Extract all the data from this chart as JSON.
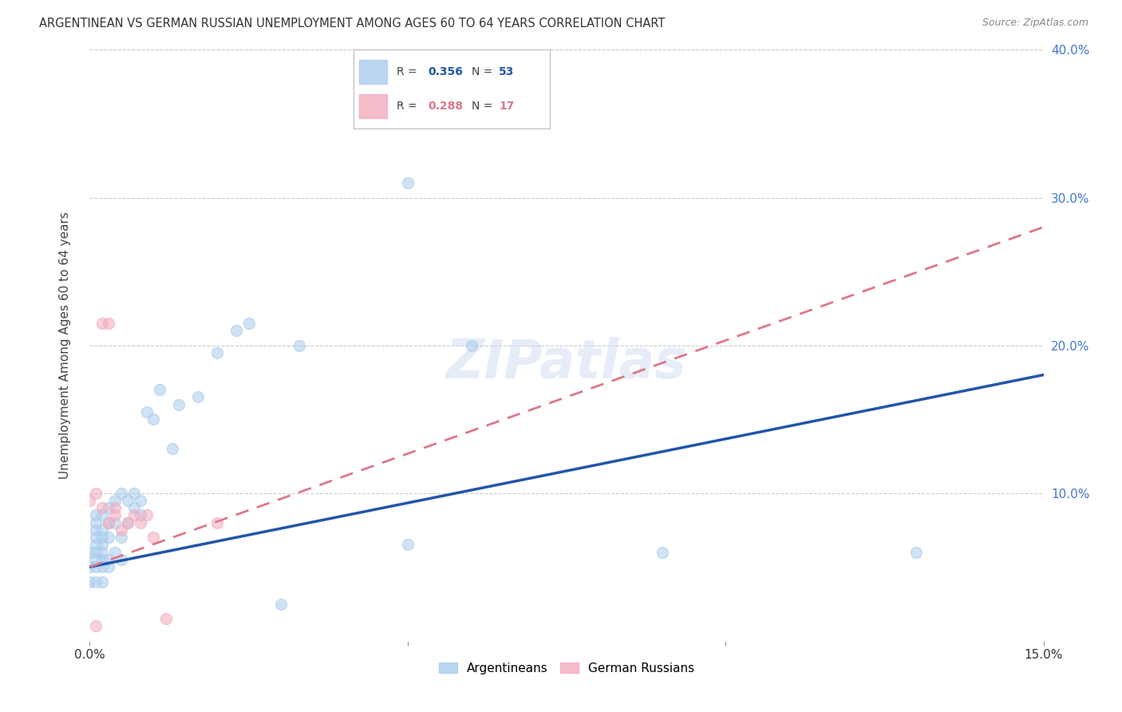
{
  "title": "ARGENTINEAN VS GERMAN RUSSIAN UNEMPLOYMENT AMONG AGES 60 TO 64 YEARS CORRELATION CHART",
  "source": "Source: ZipAtlas.com",
  "ylabel": "Unemployment Among Ages 60 to 64 years",
  "xlim": [
    0.0,
    0.15
  ],
  "ylim": [
    0.0,
    0.4
  ],
  "xticks": [
    0.0,
    0.05,
    0.1,
    0.15
  ],
  "xticklabels": [
    "0.0%",
    "",
    "",
    "15.0%"
  ],
  "yticks": [
    0.0,
    0.1,
    0.2,
    0.3,
    0.4
  ],
  "yticklabels": [
    "",
    "10.0%",
    "20.0%",
    "30.0%",
    "40.0%"
  ],
  "bg_color": "#ffffff",
  "grid_color": "#cccccc",
  "argentineans_color": "#aaccee",
  "german_russians_color": "#f4aabb",
  "blue_line_color": "#2255aa",
  "pink_line_color": "#dd7788",
  "legend_R1": "R = 0.356",
  "legend_N1": "N = 53",
  "legend_R2": "R = 0.288",
  "legend_N2": "N = 17",
  "tick_color": "#4477cc",
  "marker_size": 100,
  "marker_alpha": 0.55,
  "argentineans_x": [
    0.0,
    0.0,
    0.0,
    0.001,
    0.001,
    0.001,
    0.001,
    0.001,
    0.001,
    0.001,
    0.001,
    0.001,
    0.002,
    0.002,
    0.002,
    0.002,
    0.002,
    0.002,
    0.002,
    0.002,
    0.003,
    0.003,
    0.003,
    0.003,
    0.003,
    0.004,
    0.004,
    0.004,
    0.005,
    0.005,
    0.005,
    0.006,
    0.006,
    0.007,
    0.007,
    0.008,
    0.008,
    0.009,
    0.01,
    0.011,
    0.013,
    0.014,
    0.017,
    0.02,
    0.023,
    0.025,
    0.03,
    0.033,
    0.05,
    0.06,
    0.09,
    0.13,
    0.05
  ],
  "argentineans_y": [
    0.04,
    0.05,
    0.06,
    0.04,
    0.05,
    0.055,
    0.06,
    0.065,
    0.07,
    0.075,
    0.08,
    0.085,
    0.04,
    0.05,
    0.055,
    0.06,
    0.065,
    0.07,
    0.075,
    0.085,
    0.05,
    0.055,
    0.07,
    0.08,
    0.09,
    0.06,
    0.08,
    0.095,
    0.055,
    0.07,
    0.1,
    0.08,
    0.095,
    0.09,
    0.1,
    0.085,
    0.095,
    0.155,
    0.15,
    0.17,
    0.13,
    0.16,
    0.165,
    0.195,
    0.21,
    0.215,
    0.025,
    0.2,
    0.065,
    0.2,
    0.06,
    0.06,
    0.31
  ],
  "german_russians_x": [
    0.0,
    0.001,
    0.001,
    0.002,
    0.002,
    0.003,
    0.003,
    0.004,
    0.004,
    0.005,
    0.006,
    0.007,
    0.008,
    0.009,
    0.01,
    0.012,
    0.02
  ],
  "german_russians_y": [
    0.095,
    0.1,
    0.01,
    0.09,
    0.215,
    0.215,
    0.08,
    0.09,
    0.085,
    0.075,
    0.08,
    0.085,
    0.08,
    0.085,
    0.07,
    0.015,
    0.08
  ],
  "blue_line_x0": 0.0,
  "blue_line_y0": 0.05,
  "blue_line_x1": 0.15,
  "blue_line_y1": 0.18,
  "pink_line_x0": 0.0,
  "pink_line_y0": 0.05,
  "pink_line_x1": 0.15,
  "pink_line_y1": 0.28
}
